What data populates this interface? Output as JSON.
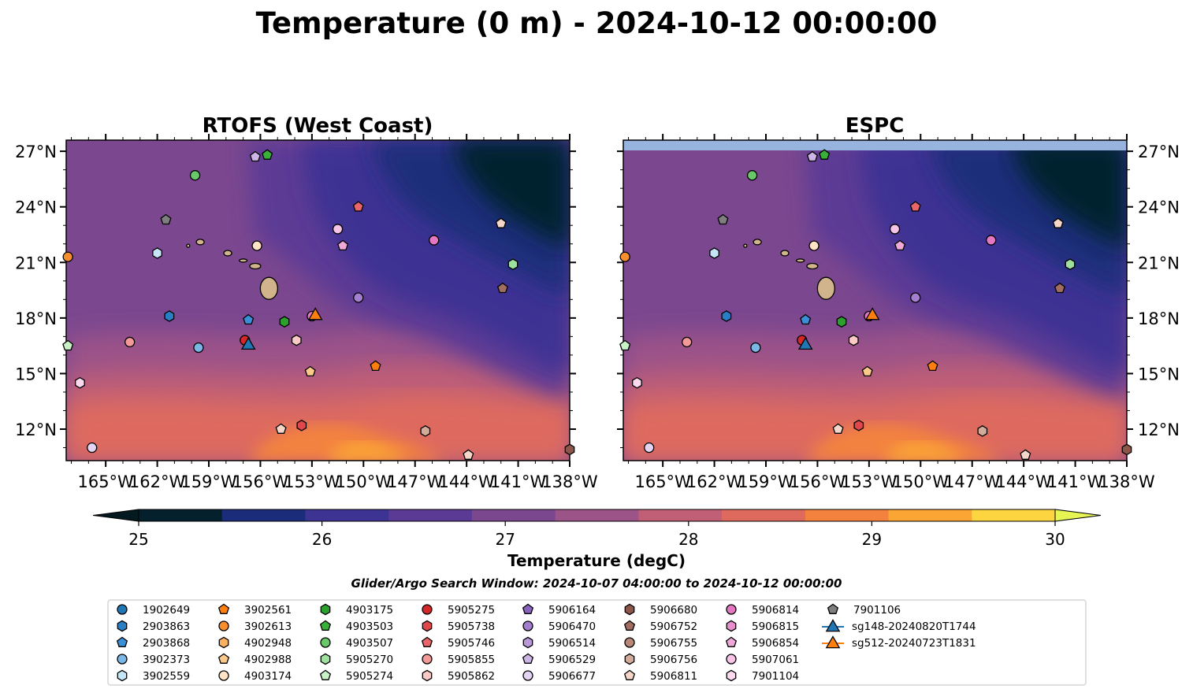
{
  "title": "Temperature (0 m) - 2024-10-12 00:00:00",
  "panels": [
    {
      "title": "RTOFS (West Coast)",
      "lat_label_side": "left"
    },
    {
      "title": "ESPC",
      "lat_label_side": "right"
    }
  ],
  "lon_ticks": [
    "165°W",
    "162°W",
    "159°W",
    "156°W",
    "153°W",
    "150°W",
    "147°W",
    "144°W",
    "141°W",
    "138°W"
  ],
  "lat_ticks": [
    "27°N",
    "24°N",
    "21°N",
    "18°N",
    "15°N",
    "12°N"
  ],
  "colorbar": {
    "label": "Temperature (degC)",
    "ticks": [
      "25",
      "26",
      "27",
      "28",
      "29",
      "30"
    ],
    "colors": [
      "#05202d",
      "#1b2d7a",
      "#3d3393",
      "#5b3a95",
      "#7b478f",
      "#9c5388",
      "#c05f76",
      "#de6a5e",
      "#f3823f",
      "#fba534",
      "#fdd540"
    ],
    "under_color": "#041820",
    "over_color": "#e6f553"
  },
  "subtitle": "Glider/Argo Search Window: 2024-10-07 04:00:00 to 2024-10-12 00:00:00",
  "legend": [
    {
      "label": "1902649",
      "marker": "circle",
      "color": "#1f77b4"
    },
    {
      "label": "2903863",
      "marker": "hexagon",
      "color": "#2a7fc4"
    },
    {
      "label": "2903868",
      "marker": "pentagon",
      "color": "#3b8fd6"
    },
    {
      "label": "3902373",
      "marker": "circle",
      "color": "#7ab7e6"
    },
    {
      "label": "3902559",
      "marker": "hexagon",
      "color": "#c6e6f7"
    },
    {
      "label": "3902561",
      "marker": "pentagon",
      "color": "#ff7f0e"
    },
    {
      "label": "3902613",
      "marker": "circle",
      "color": "#f98e2e"
    },
    {
      "label": "4902948",
      "marker": "hexagon",
      "color": "#fbb15e"
    },
    {
      "label": "4902988",
      "marker": "pentagon",
      "color": "#fdc98a"
    },
    {
      "label": "4903174",
      "marker": "circle",
      "color": "#ffe3c4"
    },
    {
      "label": "4903175",
      "marker": "hexagon",
      "color": "#2ca02c"
    },
    {
      "label": "4903503",
      "marker": "pentagon",
      "color": "#39b039"
    },
    {
      "label": "4903507",
      "marker": "circle",
      "color": "#68c86a"
    },
    {
      "label": "5905270",
      "marker": "hexagon",
      "color": "#9ee09e"
    },
    {
      "label": "5905274",
      "marker": "pentagon",
      "color": "#c8f2c6"
    },
    {
      "label": "5905275",
      "marker": "circle",
      "color": "#d62728"
    },
    {
      "label": "5905738",
      "marker": "hexagon",
      "color": "#e0464a"
    },
    {
      "label": "5905746",
      "marker": "pentagon",
      "color": "#e8666a"
    },
    {
      "label": "5905855",
      "marker": "circle",
      "color": "#f39a98"
    },
    {
      "label": "5905862",
      "marker": "hexagon",
      "color": "#fbc9c6"
    },
    {
      "label": "5906164",
      "marker": "pentagon",
      "color": "#8a63be"
    },
    {
      "label": "5906470",
      "marker": "circle",
      "color": "#a57fcf"
    },
    {
      "label": "5906514",
      "marker": "hexagon",
      "color": "#b99ad9"
    },
    {
      "label": "5906529",
      "marker": "pentagon",
      "color": "#cdb6e6"
    },
    {
      "label": "5906677",
      "marker": "circle",
      "color": "#e3d4f2"
    },
    {
      "label": "5906680",
      "marker": "hexagon",
      "color": "#8c564b"
    },
    {
      "label": "5906752",
      "marker": "pentagon",
      "color": "#a16d60"
    },
    {
      "label": "5906755",
      "marker": "circle",
      "color": "#b98878"
    },
    {
      "label": "5906756",
      "marker": "hexagon",
      "color": "#d2ab9b"
    },
    {
      "label": "5906811",
      "marker": "pentagon",
      "color": "#f5d6c8"
    },
    {
      "label": "5906814",
      "marker": "circle",
      "color": "#e377c2"
    },
    {
      "label": "5906815",
      "marker": "hexagon",
      "color": "#e88fcd"
    },
    {
      "label": "5906854",
      "marker": "pentagon",
      "color": "#efa9d9"
    },
    {
      "label": "5907061",
      "marker": "circle",
      "color": "#f7c3e6"
    },
    {
      "label": "7901104",
      "marker": "hexagon",
      "color": "#fbd9ee"
    },
    {
      "label": "7901106",
      "marker": "pentagon",
      "color": "#7f7f7f"
    },
    {
      "label": "sg148-20240820T1744",
      "marker": "triangle",
      "color": "#1f77b4"
    },
    {
      "label": "sg512-20240723T1831",
      "marker": "triangle",
      "color": "#ff7f0e"
    }
  ],
  "floats": [
    {
      "id": "3902613",
      "lon": -167.2,
      "lat": 21.3
    },
    {
      "id": "5905274",
      "lon": -167.2,
      "lat": 16.5
    },
    {
      "id": "7901104",
      "lon": -166.5,
      "lat": 14.5
    },
    {
      "id": "5906677",
      "lon": -165.8,
      "lat": 11.0
    },
    {
      "id": "5905855",
      "lon": -163.6,
      "lat": 16.7
    },
    {
      "id": "3902559",
      "lon": -162.0,
      "lat": 21.5
    },
    {
      "id": "7901106",
      "lon": -161.5,
      "lat": 23.3
    },
    {
      "id": "2903863",
      "lon": -161.3,
      "lat": 18.1
    },
    {
      "id": "4903507",
      "lon": -159.8,
      "lat": 25.7
    },
    {
      "id": "3902373",
      "lon": -159.6,
      "lat": 16.4
    },
    {
      "id": "5905275",
      "lon": -156.9,
      "lat": 16.8
    },
    {
      "id": "2903868",
      "lon": -156.7,
      "lat": 17.9
    },
    {
      "id": "4903174",
      "lon": -156.2,
      "lat": 21.9
    },
    {
      "id": "5906529",
      "lon": -156.3,
      "lat": 26.7
    },
    {
      "id": "4903503",
      "lon": -155.6,
      "lat": 26.8
    },
    {
      "id": "4903175",
      "lon": -154.6,
      "lat": 17.8
    },
    {
      "id": "5906811",
      "lon": -154.8,
      "lat": 12.0
    },
    {
      "id": "5905862",
      "lon": -153.9,
      "lat": 16.8
    },
    {
      "id": "5905738",
      "lon": -153.6,
      "lat": 12.2
    },
    {
      "id": "4902988",
      "lon": -153.1,
      "lat": 15.1
    },
    {
      "id": "5906814",
      "lon": -153.0,
      "lat": 18.1
    },
    {
      "id": "5907061",
      "lon": -151.5,
      "lat": 22.8
    },
    {
      "id": "5906854",
      "lon": -151.2,
      "lat": 21.9
    },
    {
      "id": "5905746",
      "lon": -150.3,
      "lat": 24.0
    },
    {
      "id": "5906470",
      "lon": -150.3,
      "lat": 19.1
    },
    {
      "id": "3902561",
      "lon": -149.3,
      "lat": 15.4
    },
    {
      "id": "5906756",
      "lon": -146.4,
      "lat": 11.9
    },
    {
      "id": "5906814",
      "lon": -145.9,
      "lat": 22.2
    },
    {
      "id": "5906811",
      "lon": -143.9,
      "lat": 10.6
    },
    {
      "id": "5906811",
      "lon": -142.0,
      "lat": 23.1
    },
    {
      "id": "5906752",
      "lon": -141.9,
      "lat": 19.6
    },
    {
      "id": "5905270",
      "lon": -141.3,
      "lat": 20.9
    },
    {
      "id": "5906680",
      "lon": -138.0,
      "lat": 10.9
    }
  ],
  "gliders": [
    {
      "id": "sg148-20240820T1744",
      "lon": -156.7,
      "lat": 16.6
    },
    {
      "id": "sg512-20240723T1831",
      "lon": -152.8,
      "lat": 18.2
    }
  ]
}
